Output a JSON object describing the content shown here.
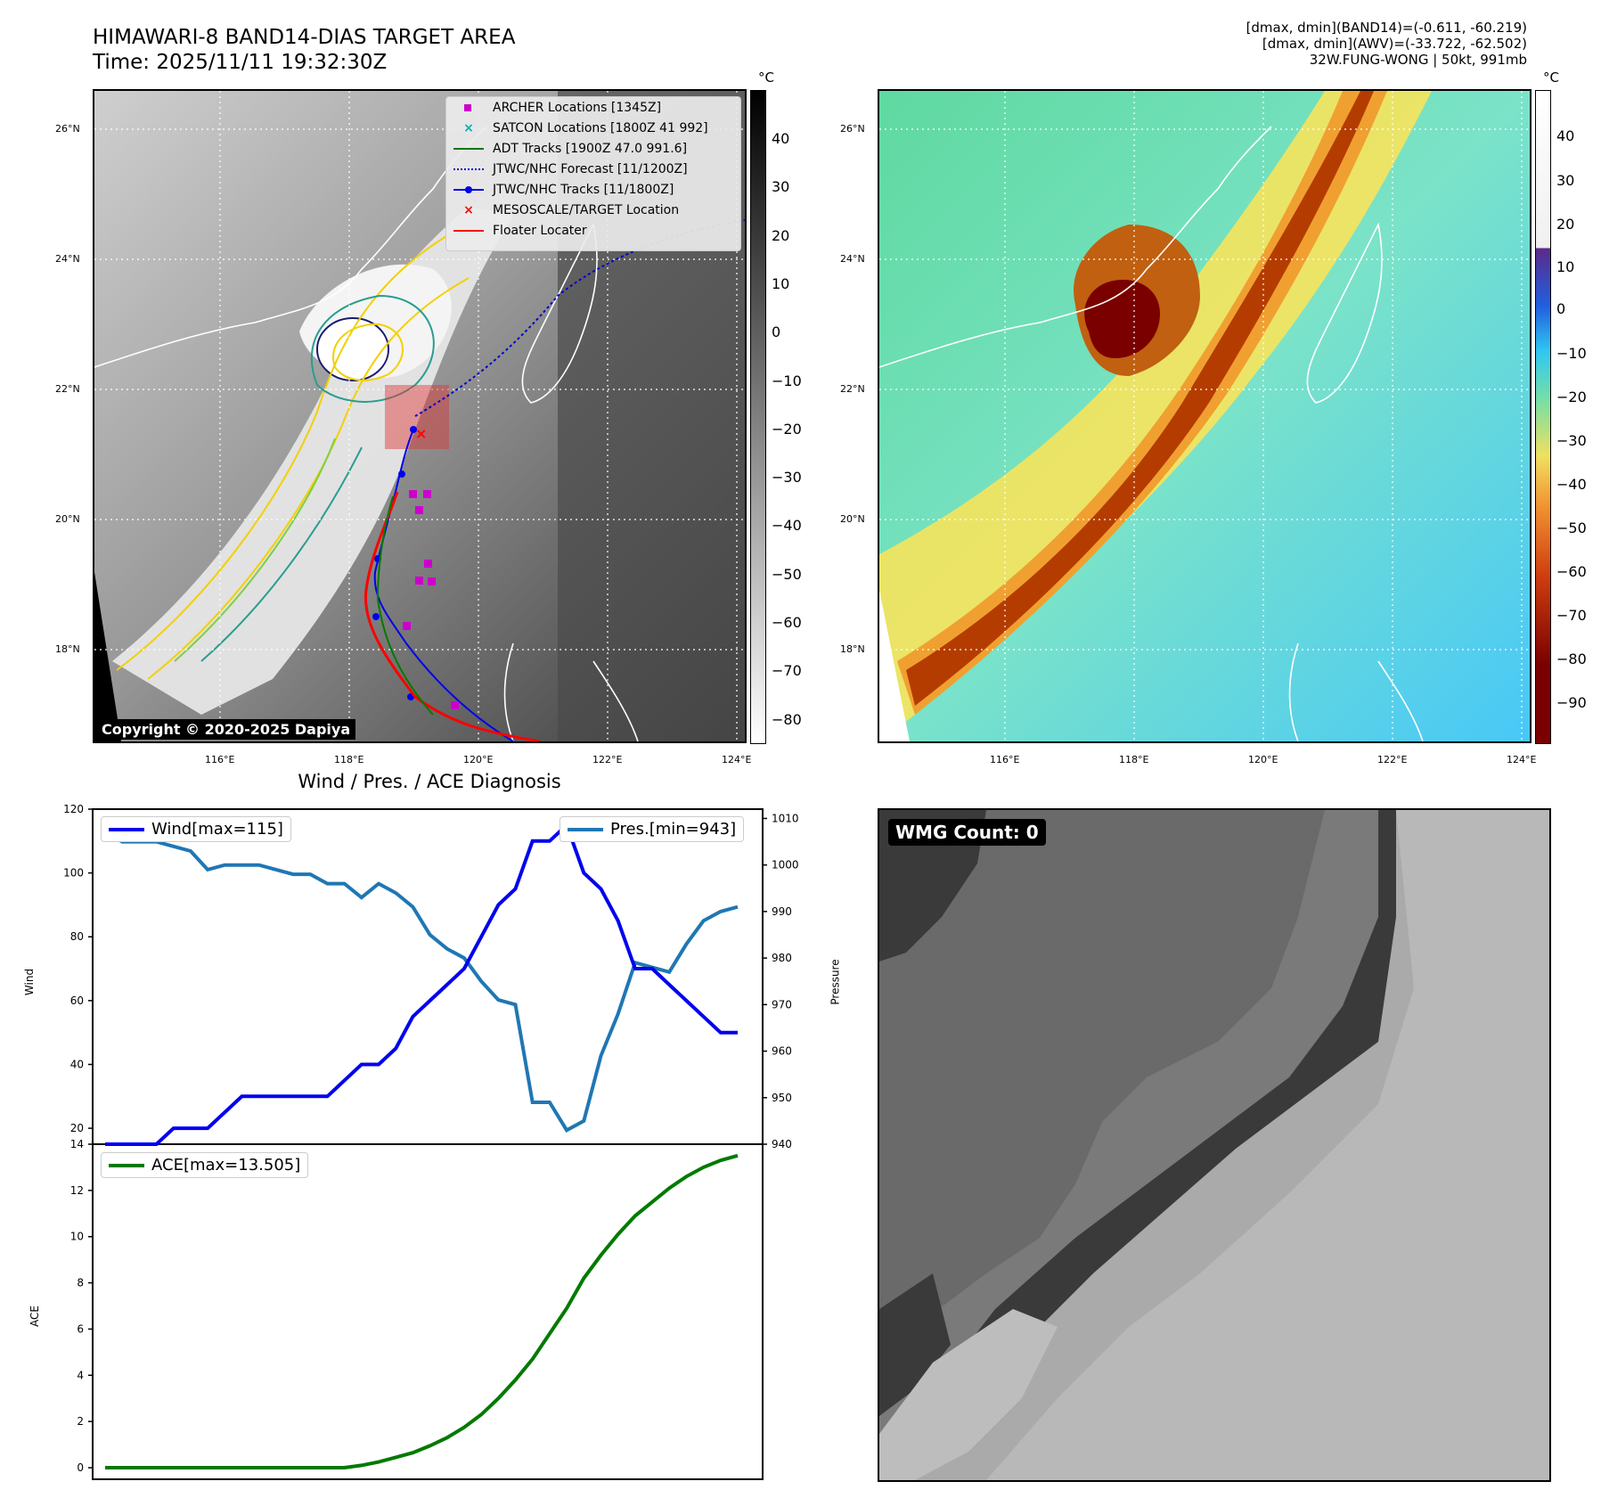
{
  "header": {
    "title_line1": "HIMAWARI-8 BAND14-DIAS TARGET AREA",
    "title_line2": "Time: 2025/11/11 19:32:30Z",
    "info_line1": "[dmax, dmin](BAND14)=(-0.611, -60.219)",
    "info_line2": "[dmax, dmin](AWV)=(-33.722, -62.502)",
    "info_line3": "32W.FUNG-WONG | 50kt, 991mb"
  },
  "map_axes": {
    "lon_ticks": [
      "116°E",
      "118°E",
      "120°E",
      "122°E",
      "124°E"
    ],
    "lat_ticks": [
      "26°N",
      "24°N",
      "22°N",
      "20°N",
      "18°N"
    ]
  },
  "legend": {
    "archer": "ARCHER Locations [1345Z]",
    "satcon": "SATCON Locations [1800Z 41 992]",
    "adt": "ADT Tracks [1900Z 47.0 991.6]",
    "forecast": "JTWC/NHC Forecast [11/1200Z]",
    "tracks": "JTWC/NHC Tracks [11/1800Z]",
    "mesoscale": "MESOSCALE/TARGET Location",
    "floater": "Floater Locater"
  },
  "colors": {
    "archer": "#cc00cc",
    "satcon": "#00b0b0",
    "adt": "#007a00",
    "forecast": "#0000cc",
    "tracks": "#0000ee",
    "mesoscale": "#ff0000",
    "floater": "#ff0000",
    "wind": "#0000ee",
    "pressure": "#1f77b4",
    "ace": "#007a00"
  },
  "copyright": "Copyright © 2020-2025 Dapiya",
  "colorbar_left": {
    "unit": "°C",
    "ticks": [
      "40",
      "30",
      "20",
      "10",
      "0",
      "−10",
      "−20",
      "−30",
      "−40",
      "−50",
      "−60",
      "−70",
      "−80"
    ]
  },
  "colorbar_right": {
    "unit": "°C",
    "ticks": [
      "40",
      "30",
      "20",
      "10",
      "0",
      "−10",
      "−20",
      "−30",
      "−40",
      "−50",
      "−60",
      "−70",
      "−80",
      "−90"
    ]
  },
  "wmg": {
    "label": "WMG Count: 0"
  },
  "chart_data": [
    {
      "type": "line",
      "title": "Wind / Pres. / ACE Diagnosis",
      "ylabel": "Wind",
      "ylabel_right": "Pressure",
      "ylim": [
        15,
        120
      ],
      "ylim_right": [
        940,
        1012
      ],
      "yticks": [
        20,
        40,
        60,
        80,
        100,
        120
      ],
      "yticks_right": [
        940,
        950,
        960,
        970,
        980,
        990,
        1000,
        1010
      ],
      "series": [
        {
          "name": "Wind[max=115]",
          "axis": "left",
          "values": [
            15,
            15,
            15,
            15,
            20,
            20,
            20,
            25,
            30,
            30,
            30,
            30,
            30,
            30,
            35,
            40,
            40,
            45,
            55,
            60,
            65,
            70,
            80,
            90,
            95,
            110,
            110,
            115,
            100,
            95,
            85,
            70,
            70,
            65,
            60,
            55,
            50,
            50
          ]
        },
        {
          "name": "Pres.[min=943]",
          "axis": "right",
          "values": [
            1007,
            1005,
            1005,
            1005,
            1004,
            1003,
            999,
            1000,
            1000,
            1000,
            999,
            998,
            998,
            996,
            996,
            993,
            996,
            994,
            991,
            985,
            982,
            980,
            975,
            971,
            970,
            949,
            949,
            943,
            945,
            959,
            968,
            979,
            978,
            977,
            983,
            988,
            990,
            991
          ]
        }
      ]
    },
    {
      "type": "line",
      "ylabel": "ACE",
      "ylim": [
        -0.5,
        14
      ],
      "yticks": [
        0,
        2,
        4,
        6,
        8,
        10,
        12,
        14
      ],
      "series": [
        {
          "name": "ACE[max=13.505]",
          "values": [
            0,
            0,
            0,
            0,
            0,
            0,
            0,
            0,
            0,
            0,
            0,
            0,
            0,
            0,
            0,
            0.1,
            0.25,
            0.45,
            0.65,
            0.95,
            1.3,
            1.75,
            2.3,
            3.0,
            3.8,
            4.7,
            5.8,
            6.9,
            8.2,
            9.2,
            10.1,
            10.9,
            11.5,
            12.1,
            12.6,
            13.0,
            13.3,
            13.505
          ]
        }
      ]
    }
  ]
}
